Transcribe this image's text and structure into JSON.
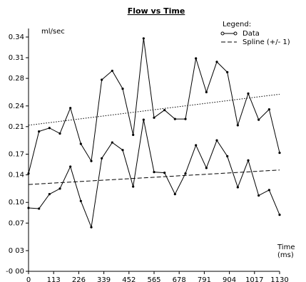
{
  "chart_data": {
    "type": "line",
    "title": "Flow vs Time",
    "y_label": "ml/sec",
    "x_label": "Time (ms)",
    "legend_title": "Legend:",
    "legend": "upper-right",
    "xlim": [
      0,
      1130
    ],
    "xticks": [
      0,
      113,
      226,
      339,
      452,
      565,
      678,
      791,
      904,
      1017,
      1130
    ],
    "ylim": [
      0,
      0.34
    ],
    "yticks": [
      {
        "value": 0,
        "label": "-0 00"
      },
      {
        "value": 0.03,
        "label": "0 03"
      },
      0.07,
      {
        "value": 0.1,
        "label": "0.10"
      },
      0.14,
      0.17,
      0.21,
      0.24,
      0.28,
      0.31,
      0.34
    ],
    "series": [
      {
        "name": "Data",
        "color": "#000000",
        "line_style": "solid",
        "markers": true,
        "x": [
          0,
          47.08,
          94.17,
          141.25,
          188.33,
          235.42,
          282.5,
          329.58,
          376.67,
          423.75,
          470.83,
          517.92,
          565,
          612.08,
          659.17,
          706.25,
          753.33,
          800.42,
          847.5,
          894.58,
          941.67,
          988.75,
          1035.83,
          1082.92,
          1130
        ],
        "values": [
          0.142,
          0.203,
          0.208,
          0.2,
          0.237,
          0.185,
          0.16,
          0.278,
          0.291,
          0.265,
          0.198,
          0.338,
          0.223,
          0.234,
          0.221,
          0.221,
          0.309,
          0.26,
          0.304,
          0.289,
          0.212,
          0.258,
          0.22,
          0.235,
          0.172
        ]
      },
      {
        "color": "#000000",
        "line_style": "solid",
        "markers": true,
        "x": [
          0,
          47.08,
          94.17,
          141.25,
          188.33,
          235.42,
          282.5,
          329.58,
          376.67,
          423.75,
          470.83,
          517.92,
          565,
          612.08,
          659.17,
          706.25,
          753.33,
          800.42,
          847.5,
          894.58,
          941.67,
          988.75,
          1035.83,
          1082.92,
          1130
        ],
        "values": [
          0.092,
          0.091,
          0.112,
          0.12,
          0.152,
          0.102,
          0.064,
          0.164,
          0.187,
          0.176,
          0.123,
          0.22,
          0.144,
          0.143,
          0.112,
          0.142,
          0.183,
          0.15,
          0.19,
          0.167,
          0.122,
          0.161,
          0.11,
          0.118,
          0.082
        ]
      },
      {
        "color": "#000000",
        "line_style": "dotted",
        "markers": false,
        "x": [
          0,
          1130
        ],
        "values": [
          0.212,
          0.257
        ]
      },
      {
        "name": "Spline (+/- 1)",
        "color": "#000000",
        "line_style": "dashed",
        "markers": false,
        "x": [
          0,
          1130
        ],
        "values": [
          0.126,
          0.147
        ]
      }
    ]
  }
}
